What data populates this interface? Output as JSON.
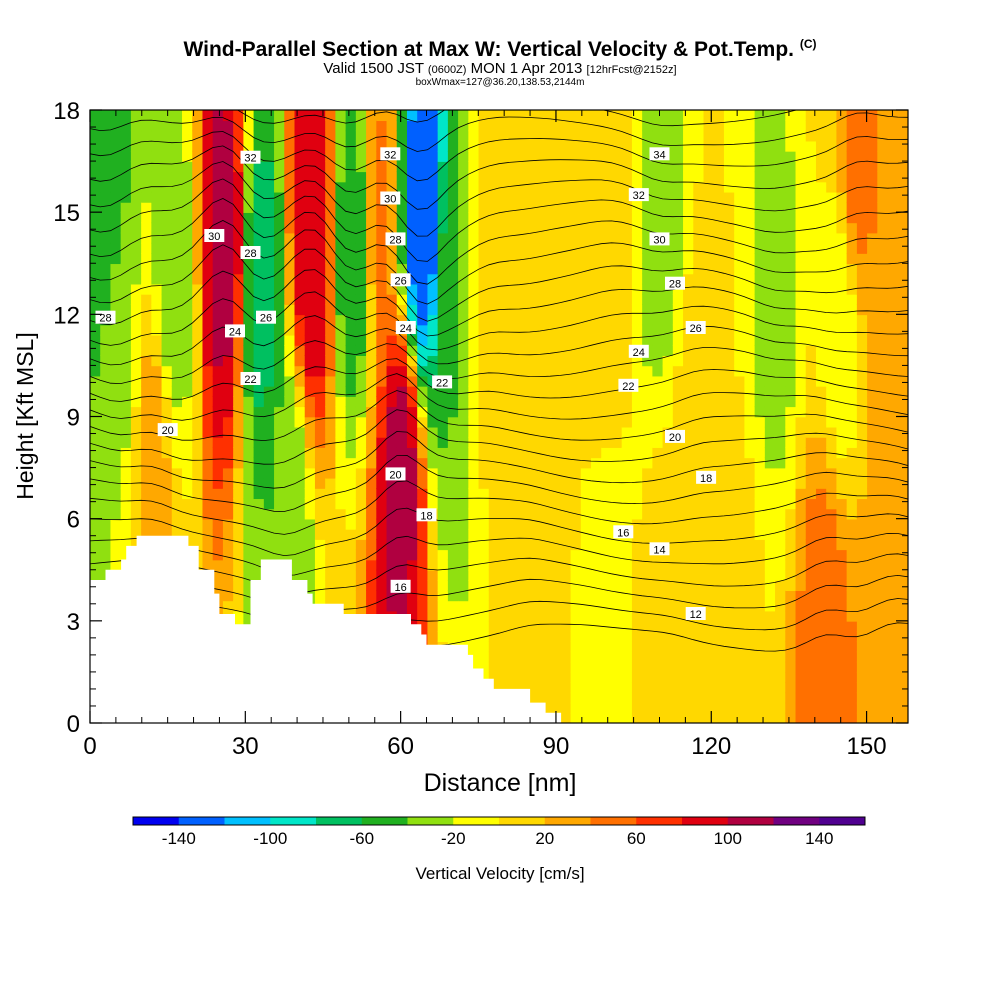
{
  "title": "Wind-Parallel Section at Max W: Vertical Velocity & Pot.Temp.",
  "copyright_mark": "(C)",
  "subtitle_main": "Valid 1500 JST",
  "subtitle_utc": "(0600Z)",
  "subtitle_date": "MON 1 Apr 2013",
  "subtitle_fcst": "[12hrFcst@2152z]",
  "subtitle2": "boxWmax=127@36.20,138.53,2144m",
  "chart_data": {
    "type": "heatmap",
    "xlabel": "Distance [nm]",
    "ylabel": "Height [Kft MSL]",
    "xlim": [
      0,
      158
    ],
    "ylim": [
      0,
      18
    ],
    "xticks": [
      0,
      30,
      60,
      90,
      120,
      150
    ],
    "yticks": [
      0,
      3,
      6,
      9,
      12,
      15,
      18
    ],
    "colorbar": {
      "label": "Vertical Velocity [cm/s]",
      "tick_labels": [
        "-140",
        "-100",
        "-60",
        "-20",
        "20",
        "60",
        "100",
        "140"
      ],
      "ticks": [
        -140,
        -100,
        -60,
        -20,
        20,
        60,
        100,
        140
      ],
      "range": [
        -160,
        160
      ],
      "colors": [
        "#0000f0",
        "#0060ff",
        "#00c0ff",
        "#00e6c8",
        "#00c060",
        "#20b020",
        "#90e010",
        "#ffff00",
        "#ffd800",
        "#ffa800",
        "#ff7000",
        "#ff3000",
        "#e00010",
        "#b00040",
        "#700080",
        "#500090"
      ]
    },
    "w_features": [
      {
        "x": 3,
        "y": 15.5,
        "w": -60
      },
      {
        "x": 6,
        "y": 11,
        "w": -25
      },
      {
        "x": 16,
        "y": 13,
        "w": -35
      },
      {
        "x": 26,
        "y": 14,
        "w": 110
      },
      {
        "x": 33,
        "y": 13,
        "w": -70
      },
      {
        "x": 43,
        "y": 14,
        "w": 100
      },
      {
        "x": 51,
        "y": 14,
        "w": -60
      },
      {
        "x": 56,
        "y": 15,
        "w": 45
      },
      {
        "x": 60,
        "y": 7.5,
        "w": 110
      },
      {
        "x": 64,
        "y": 14.5,
        "w": -140
      },
      {
        "x": 70,
        "y": 12,
        "w": -40
      },
      {
        "x": 78,
        "y": 13,
        "w": 15
      },
      {
        "x": 100,
        "y": 14,
        "w": 10
      },
      {
        "x": 110,
        "y": 15,
        "w": -30
      },
      {
        "x": 118,
        "y": 8,
        "w": 20
      },
      {
        "x": 132,
        "y": 12,
        "w": -25
      },
      {
        "x": 145,
        "y": 12,
        "w": -15
      },
      {
        "x": 148,
        "y": 16,
        "w": 45
      },
      {
        "x": 142,
        "y": 3,
        "w": 50
      },
      {
        "x": 155,
        "y": 2.5,
        "w": 40
      },
      {
        "x": 100,
        "y": 3,
        "w": -5
      },
      {
        "x": 85,
        "y": 3.5,
        "w": 12
      },
      {
        "x": 12,
        "y": 8,
        "w": 30
      },
      {
        "x": 38,
        "y": 6,
        "w": -40
      },
      {
        "x": 112,
        "y": 3,
        "w": 12
      },
      {
        "x": 125,
        "y": 4,
        "w": 5
      }
    ],
    "terrain": [
      [
        0,
        4.2
      ],
      [
        3,
        4.2
      ],
      [
        3,
        4.5
      ],
      [
        6,
        4.5
      ],
      [
        6,
        4.8
      ],
      [
        7,
        4.8
      ],
      [
        7,
        5.2
      ],
      [
        9,
        5.2
      ],
      [
        9,
        5.5
      ],
      [
        19,
        5.5
      ],
      [
        19,
        5.2
      ],
      [
        21,
        5.2
      ],
      [
        21,
        4.5
      ],
      [
        24,
        4.5
      ],
      [
        24,
        3.8
      ],
      [
        25,
        3.8
      ],
      [
        25,
        3.2
      ],
      [
        28,
        3.2
      ],
      [
        28,
        2.9
      ],
      [
        31,
        2.9
      ],
      [
        31,
        4.2
      ],
      [
        33,
        4.2
      ],
      [
        33,
        4.8
      ],
      [
        39,
        4.8
      ],
      [
        39,
        4.2
      ],
      [
        42,
        4.2
      ],
      [
        42,
        3.8
      ],
      [
        43,
        3.8
      ],
      [
        43,
        3.5
      ],
      [
        49,
        3.5
      ],
      [
        49,
        3.2
      ],
      [
        62,
        3.2
      ],
      [
        62,
        2.9
      ],
      [
        64,
        2.9
      ],
      [
        64,
        2.6
      ],
      [
        65,
        2.6
      ],
      [
        65,
        2.3
      ],
      [
        73,
        2.3
      ],
      [
        73,
        2.0
      ],
      [
        74,
        2.0
      ],
      [
        74,
        1.6
      ],
      [
        76,
        1.6
      ],
      [
        76,
        1.3
      ],
      [
        78,
        1.3
      ],
      [
        78,
        1.0
      ],
      [
        85,
        1.0
      ],
      [
        85,
        0.6
      ],
      [
        88,
        0.6
      ],
      [
        88,
        0.3
      ],
      [
        91,
        0.3
      ],
      [
        91,
        0.0
      ]
    ],
    "theta_contour_labels": [
      {
        "text": "32",
        "x": 31,
        "y": 16.6
      },
      {
        "text": "30",
        "x": 24,
        "y": 14.3
      },
      {
        "text": "28",
        "x": 31,
        "y": 13.8
      },
      {
        "text": "28",
        "x": 3,
        "y": 11.9
      },
      {
        "text": "26",
        "x": 34,
        "y": 11.9
      },
      {
        "text": "24",
        "x": 28,
        "y": 11.5
      },
      {
        "text": "22",
        "x": 31,
        "y": 10.1
      },
      {
        "text": "20",
        "x": 15,
        "y": 8.6
      },
      {
        "text": "32",
        "x": 58,
        "y": 16.7
      },
      {
        "text": "30",
        "x": 58,
        "y": 15.4
      },
      {
        "text": "28",
        "x": 59,
        "y": 14.2
      },
      {
        "text": "26",
        "x": 60,
        "y": 13.0
      },
      {
        "text": "24",
        "x": 61,
        "y": 11.6
      },
      {
        "text": "22",
        "x": 68,
        "y": 10.0
      },
      {
        "text": "20",
        "x": 59,
        "y": 7.3
      },
      {
        "text": "18",
        "x": 65,
        "y": 6.1
      },
      {
        "text": "16",
        "x": 60,
        "y": 4.0
      },
      {
        "text": "34",
        "x": 110,
        "y": 16.7
      },
      {
        "text": "32",
        "x": 106,
        "y": 15.5
      },
      {
        "text": "30",
        "x": 110,
        "y": 14.2
      },
      {
        "text": "28",
        "x": 113,
        "y": 12.9
      },
      {
        "text": "26",
        "x": 117,
        "y": 11.6
      },
      {
        "text": "24",
        "x": 106,
        "y": 10.9
      },
      {
        "text": "22",
        "x": 104,
        "y": 9.9
      },
      {
        "text": "20",
        "x": 113,
        "y": 8.4
      },
      {
        "text": "18",
        "x": 119,
        "y": 7.2
      },
      {
        "text": "16",
        "x": 103,
        "y": 5.6
      },
      {
        "text": "14",
        "x": 110,
        "y": 5.1
      },
      {
        "text": "12",
        "x": 117,
        "y": 3.2
      }
    ]
  }
}
